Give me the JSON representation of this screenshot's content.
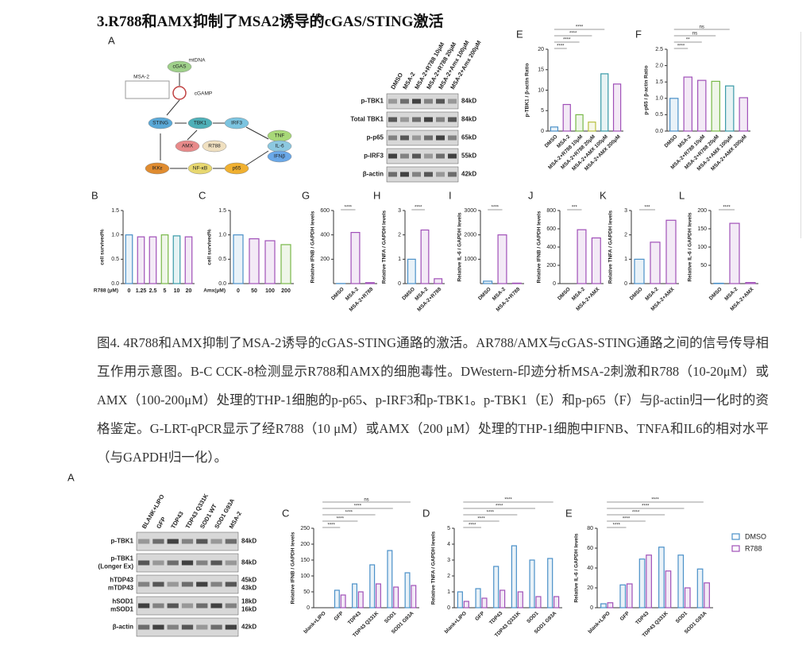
{
  "heading": "3.R788和AMX抑制了MSA2诱导的cGAS/STING激活",
  "caption": "图4. 4R788和AMX抑制了MSA-2诱导的cGAS-STING通路的激活。AR788/AMX与cGAS-STING通路之间的信号传导相互作用示意图。B-C CCK-8检测显示R788和AMX的细胞毒性。DWestern-印迹分析MSA-2刺激和R788（10-20μM）或AMX（100-200μM）处理的THP-1细胞的p-p65、p-IRF3和p-TBK1。p-TBK1（E）和p-p65（F）与β-actin归一化时的资格鉴定。G-LRT-qPCR显示了经R788（10 μM）或AMX（200 μM）处理的THP-1细胞中IFNB、TNFA和IL6的相对水平（与GAPDH归一化）。",
  "diagram": {
    "panel": "A",
    "nodes": [
      "MSA-2",
      "mtDNA",
      "cGAS",
      "cGAMP",
      "STING",
      "TBK1",
      "IRF3",
      "AMX",
      "R788",
      "TNF",
      "IL-6",
      "IFNβ",
      "IKKε",
      "NF-κB",
      "p65"
    ]
  },
  "blots": [
    {
      "panel": "D",
      "lanes": [
        "DMSO",
        "MSA-2",
        "MSA-2+R788 10μM",
        "MSA-2+R788 20μM",
        "MSA-2+Amx 100μM",
        "MSA-2+Amx 200μM"
      ],
      "rows": [
        {
          "labels": [
            "p-TBK1"
          ],
          "sizes": [
            "84kD"
          ]
        },
        {
          "labels": [
            "Total TBK1"
          ],
          "sizes": [
            "84kD"
          ]
        },
        {
          "labels": [
            "p-p65"
          ],
          "sizes": [
            "65kD"
          ]
        },
        {
          "labels": [
            "p-IRF3"
          ],
          "sizes": [
            "55kD"
          ]
        },
        {
          "labels": [
            "β-actin"
          ],
          "sizes": [
            "42kD"
          ]
        }
      ]
    },
    {
      "panel": "A",
      "lanes": [
        "BLANK+LIPO",
        "GFP",
        "TDP43",
        "TDP43 Q331K",
        "SOD1 WT",
        "SOD1 G93A",
        "MSA-2"
      ],
      "rows": [
        {
          "labels": [
            "p-TBK1"
          ],
          "sizes": [
            "84kD"
          ]
        },
        {
          "labels": [
            "p-TBK1",
            "(Longer Ex)"
          ],
          "sizes": [
            "84kD"
          ]
        },
        {
          "labels": [
            "hTDP43",
            "mTDP43"
          ],
          "sizes": [
            "45kD",
            "43kD"
          ]
        },
        {
          "labels": [
            "hSOD1",
            "mSOD1"
          ],
          "sizes": [
            "18kD",
            "16kD"
          ]
        },
        {
          "labels": [
            "β-actin"
          ],
          "sizes": [
            "42kD"
          ]
        }
      ]
    }
  ],
  "chart_data": [
    {
      "type": "bar",
      "panel": "E",
      "y_label": "p-TBK1 / β-actin Ratio",
      "categories": [
        "DMSO",
        "MSA-2",
        "MSA-2+R788 10μM",
        "MSA-2+R788 20μM",
        "MSA-2+AMX 100μM",
        "MSA-2+AMX 200μM"
      ],
      "values": [
        1,
        6.5,
        4,
        2.2,
        14,
        11.5
      ],
      "colors": [
        "#4a90c8",
        "#a050b8",
        "#78b848",
        "#b8c040",
        "#3a9aa8",
        "#a050b8"
      ],
      "ylim": [
        0,
        20
      ],
      "yticks": [
        0,
        5,
        10,
        15,
        20
      ],
      "annotations": [
        "****",
        "****",
        "****",
        "****"
      ]
    },
    {
      "type": "bar",
      "panel": "F",
      "y_label": "p-p65 / β-actin Ratio",
      "categories": [
        "DMSO",
        "MSA-2",
        "MSA-2+R788 10μM",
        "MSA-2+R788 20μM",
        "MSA-2+AMX 100μM",
        "MSA-2+AMX 200μM"
      ],
      "values": [
        1,
        1.65,
        1.55,
        1.52,
        1.38,
        1.02
      ],
      "colors": [
        "#4a90c8",
        "#a050b8",
        "#a050b8",
        "#78b848",
        "#3a9aa8",
        "#a050b8"
      ],
      "ylim": [
        0,
        2.5
      ],
      "yticks": [
        {
          "value": 0,
          "label": "0.0"
        },
        {
          "value": 0.5,
          "label": "0.5"
        },
        {
          "value": 1,
          "label": "1.0"
        },
        {
          "value": 1.5,
          "label": "1.5"
        },
        {
          "value": 2,
          "label": "2.0"
        },
        {
          "value": 2.5,
          "label": "2.5"
        }
      ],
      "annotations": [
        "****",
        "**",
        "ns",
        "ns"
      ]
    },
    {
      "type": "bar",
      "panel": "B",
      "y_label": "cell survived%",
      "x_label": "R788 (μM)",
      "categories": [
        "0",
        "1.25",
        "2.5",
        "5",
        "10",
        "20"
      ],
      "values": [
        1,
        0.96,
        0.96,
        1,
        0.98,
        0.96
      ],
      "colors": [
        "#4a90c8",
        "#a050b8",
        "#a050b8",
        "#78b848",
        "#3a9aa8",
        "#a050b8"
      ],
      "ylim": [
        0,
        1.5
      ],
      "yticks": [
        {
          "value": 0,
          "label": "0.0"
        },
        {
          "value": 0.5,
          "label": "0.5"
        },
        {
          "value": 1,
          "label": "1.0"
        },
        {
          "value": 1.5,
          "label": "1.5"
        }
      ],
      "upright": true
    },
    {
      "type": "bar",
      "panel": "C",
      "y_label": "cell survived%",
      "x_label": "Amx(μM)",
      "categories": [
        "0",
        "50",
        "100",
        "200"
      ],
      "values": [
        1,
        0.92,
        0.88,
        0.8
      ],
      "colors": [
        "#4a90c8",
        "#a050b8",
        "#a050b8",
        "#78b848"
      ],
      "ylim": [
        0,
        1.5
      ],
      "yticks": [
        {
          "value": 0,
          "label": "0.0"
        },
        {
          "value": 0.5,
          "label": "0.5"
        },
        {
          "value": 1,
          "label": "1.0"
        },
        {
          "value": 1.5,
          "label": "1.5"
        }
      ],
      "upright": true
    },
    {
      "type": "bar",
      "panel": "G",
      "y_label": "Relative IFNB / GAPDH levels",
      "categories": [
        "DMSO",
        "MSA-2",
        "MSA-2+R788"
      ],
      "values": [
        1,
        420,
        8
      ],
      "colors": [
        "#4a90c8",
        "#a050b8",
        "#a050b8"
      ],
      "ylim": [
        0,
        600
      ],
      "yticks": [
        200,
        400,
        600
      ],
      "annotations": [
        "****"
      ]
    },
    {
      "type": "bar",
      "panel": "H",
      "y_label": "Relative TNFA / GAPDH levels",
      "categories": [
        "DMSO",
        "MSA-2",
        "MSA-2+R788"
      ],
      "values": [
        1,
        2.2,
        0.2
      ],
      "colors": [
        "#4a90c8",
        "#a050b8",
        "#a050b8"
      ],
      "ylim": [
        0,
        3
      ],
      "yticks": [
        0,
        1,
        2,
        3
      ],
      "annotations": [
        "****"
      ]
    },
    {
      "type": "bar",
      "panel": "I",
      "y_label": "Relative IL-6 / GAPDH levels",
      "categories": [
        "DMSO",
        "MSA-2",
        "MSA-2+R788"
      ],
      "values": [
        100,
        2000,
        20
      ],
      "colors": [
        "#4a90c8",
        "#a050b8",
        "#a050b8"
      ],
      "ylim": [
        0,
        3000
      ],
      "yticks": [
        1000,
        2000,
        3000
      ],
      "annotations": [
        "****"
      ]
    },
    {
      "type": "bar",
      "panel": "J",
      "y_label": "Relative IFNB / GAPDH levels",
      "categories": [
        "DMSO",
        "MSA-2",
        "MSA-2+AMX"
      ],
      "values": [
        0,
        590,
        500
      ],
      "colors": [
        "#4a90c8",
        "#a050b8",
        "#a050b8"
      ],
      "ylim": [
        0,
        800
      ],
      "yticks": [
        0,
        200,
        400,
        600,
        800
      ],
      "annotations": [
        "***"
      ]
    },
    {
      "type": "bar",
      "panel": "K",
      "y_label": "Relative TNFA / GAPDH levels",
      "categories": [
        "DMSO",
        "MSA-2",
        "MSA-2+AMX"
      ],
      "values": [
        1,
        1.7,
        2.6
      ],
      "colors": [
        "#4a90c8",
        "#a050b8",
        "#a050b8"
      ],
      "ylim": [
        0,
        3
      ],
      "yticks": [
        0,
        1,
        2,
        3
      ],
      "annotations": [
        "***"
      ]
    },
    {
      "type": "bar",
      "panel": "L",
      "y_label": "Relative IL-6 / GAPDH levels",
      "categories": [
        "DMSO",
        "MSA-2",
        "MSA-2+AMX"
      ],
      "values": [
        1,
        165,
        3
      ],
      "colors": [
        "#4a90c8",
        "#a050b8",
        "#a050b8"
      ],
      "ylim": [
        0,
        200
      ],
      "yticks": [
        50,
        100,
        150,
        200
      ],
      "annotations": [
        "****"
      ]
    },
    {
      "type": "bar",
      "panel": "C",
      "y_label": "Relative IFNB / GAPDH levels",
      "categories": [
        "blank+LIPO",
        "GFP",
        "TDP43",
        "TDP43 Q331K",
        "SOD1",
        "SOD1 G93A"
      ],
      "series": [
        {
          "name": "DMSO",
          "color": "#4a90c8",
          "values": [
            0,
            55,
            75,
            135,
            180,
            110
          ]
        },
        {
          "name": "R788",
          "color": "#a050b8",
          "values": [
            0,
            40,
            50,
            75,
            65,
            70
          ]
        }
      ],
      "ylim": [
        0,
        250
      ],
      "yticks": [
        0,
        50,
        100,
        150,
        200,
        250
      ],
      "annotations": [
        "****",
        "****",
        "****",
        "****",
        "ns"
      ]
    },
    {
      "type": "bar",
      "panel": "D",
      "y_label": "Relative TNFA / GAPDH levels",
      "categories": [
        "blank+LIPO",
        "GFP",
        "TDP43",
        "TDP43 Q331K",
        "SOD1",
        "SOD1 G93A"
      ],
      "series": [
        {
          "name": "DMSO",
          "color": "#4a90c8",
          "values": [
            1,
            1.2,
            2.6,
            3.9,
            3.0,
            3.1
          ]
        },
        {
          "name": "R788",
          "color": "#a050b8",
          "values": [
            0.4,
            0.6,
            1.1,
            1.0,
            0.7,
            0.7
          ]
        }
      ],
      "ylim": [
        0,
        5
      ],
      "yticks": [
        0,
        1,
        2,
        3,
        4,
        5
      ],
      "annotations": [
        "****",
        "****",
        "****",
        "****",
        "****"
      ]
    },
    {
      "type": "bar",
      "panel": "E",
      "y_label": "Relative IL-6 / GAPDH levels",
      "categories": [
        "blank+LIPO",
        "GFP",
        "TDP43",
        "TDP43 Q331K",
        "SOD1",
        "SOD1 G93A"
      ],
      "series": [
        {
          "name": "DMSO",
          "color": "#4a90c8",
          "values": [
            4,
            23,
            49,
            61,
            53,
            39
          ]
        },
        {
          "name": "R788",
          "color": "#a050b8",
          "values": [
            5,
            24,
            53,
            37,
            20,
            25
          ]
        }
      ],
      "ylim": [
        0,
        80
      ],
      "yticks": [
        0,
        20,
        40,
        60,
        80
      ],
      "annotations": [
        "****",
        "****",
        "****",
        "****",
        "****"
      ],
      "legend": true
    }
  ]
}
